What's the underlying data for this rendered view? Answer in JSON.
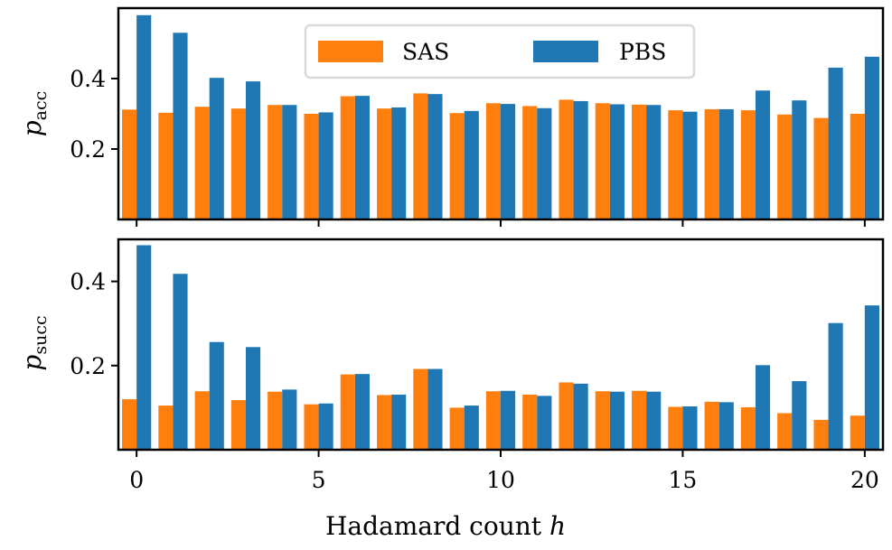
{
  "chart_data": {
    "type": "bar",
    "categories": [
      0,
      1,
      2,
      3,
      4,
      5,
      6,
      7,
      8,
      9,
      10,
      11,
      12,
      13,
      14,
      15,
      16,
      17,
      18,
      19,
      20
    ],
    "colors": {
      "SAS": "#ff7f0e",
      "PBS": "#1f77b4"
    },
    "legend": {
      "placement": "top-center",
      "entries": [
        "SAS",
        "PBS"
      ]
    },
    "xlabel": {
      "text": "Hadamard count ",
      "var": "h"
    },
    "xticks": [
      "0",
      "5",
      "10",
      "15",
      "20"
    ],
    "xlim": [
      -0.5,
      20.5
    ],
    "panels": [
      {
        "ylabel": {
          "base": "p",
          "sub": "acc"
        },
        "ylim": [
          0.0,
          0.6
        ],
        "yticks": [
          "0.2",
          "0.4"
        ],
        "series": [
          {
            "name": "SAS",
            "values": [
              0.312,
              0.303,
              0.32,
              0.315,
              0.325,
              0.3,
              0.35,
              0.315,
              0.358,
              0.302,
              0.33,
              0.322,
              0.34,
              0.33,
              0.326,
              0.31,
              0.313,
              0.31,
              0.298,
              0.288,
              0.3
            ]
          },
          {
            "name": "PBS",
            "values": [
              0.58,
              0.53,
              0.402,
              0.392,
              0.325,
              0.304,
              0.351,
              0.318,
              0.356,
              0.308,
              0.328,
              0.316,
              0.336,
              0.327,
              0.325,
              0.306,
              0.313,
              0.366,
              0.338,
              0.431,
              0.462
            ]
          }
        ]
      },
      {
        "ylabel": {
          "base": "p",
          "sub": "succ"
        },
        "ylim": [
          0.0,
          0.5
        ],
        "yticks": [
          "0.2",
          "0.4"
        ],
        "series": [
          {
            "name": "SAS",
            "values": [
              0.12,
              0.105,
              0.139,
              0.118,
              0.138,
              0.108,
              0.179,
              0.13,
              0.192,
              0.1,
              0.139,
              0.131,
              0.16,
              0.139,
              0.14,
              0.102,
              0.114,
              0.101,
              0.087,
              0.071,
              0.081
            ]
          },
          {
            "name": "PBS",
            "values": [
              0.486,
              0.418,
              0.256,
              0.244,
              0.143,
              0.11,
              0.18,
              0.131,
              0.192,
              0.105,
              0.14,
              0.128,
              0.157,
              0.138,
              0.138,
              0.103,
              0.113,
              0.201,
              0.163,
              0.301,
              0.343
            ]
          }
        ]
      }
    ]
  }
}
